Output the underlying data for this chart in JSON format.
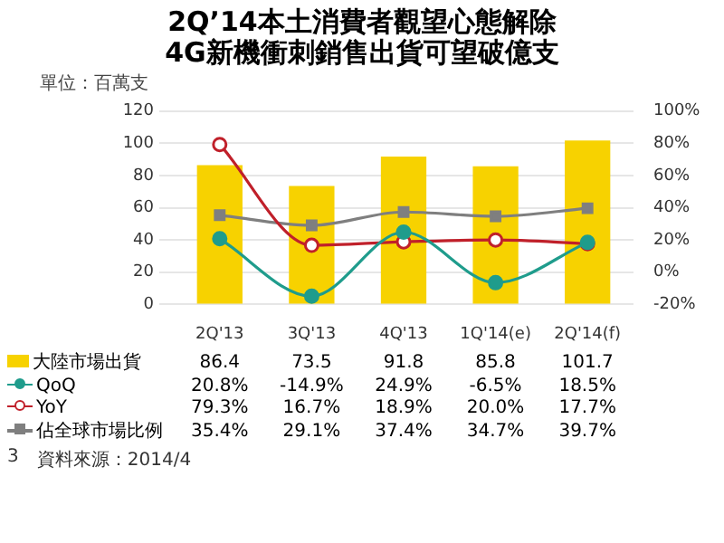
{
  "chart_data": {
    "type": "bar",
    "title": "2Q’14本土消費者觀望心態解除\n4G新機衝刺銷售出貨可望破億支",
    "ylabel": "單位：百萬支",
    "categories": [
      "2Q'13",
      "3Q'13",
      "4Q'13",
      "1Q'14(e)",
      "2Q'14(f)"
    ],
    "series": [
      {
        "name": "大陸市場出貨",
        "color": "#f7d200",
        "values": [
          86.4,
          73.5,
          91.8,
          85.8,
          101.7
        ],
        "value_labels": [
          "86.4",
          "73.5",
          "91.8",
          "85.8",
          "101.7"
        ]
      },
      {
        "name": "QoQ",
        "type": "line",
        "axis": "y2",
        "marker": "circle",
        "color": "#1f9c8c",
        "values": [
          20.8,
          -14.9,
          24.9,
          -6.5,
          18.5
        ],
        "value_labels": [
          "20.8%",
          "-14.9%",
          "24.9%",
          "-6.5%",
          "18.5%"
        ]
      },
      {
        "name": "YoY",
        "type": "line",
        "axis": "y2",
        "marker": "circle",
        "color": "#c0202a",
        "values": [
          79.3,
          16.7,
          18.9,
          20.0,
          17.7
        ],
        "value_labels": [
          "79.3%",
          "16.7%",
          "18.9%",
          "20.0%",
          "17.7%"
        ]
      },
      {
        "name": "佔全球市場比例",
        "type": "line",
        "axis": "y2",
        "marker": "square",
        "color": "#7f7f7f",
        "values": [
          35.4,
          29.1,
          37.4,
          34.7,
          39.7
        ],
        "value_labels": [
          "35.4%",
          "29.1%",
          "37.4%",
          "34.7%",
          "39.7%"
        ]
      }
    ],
    "ylim": [
      0,
      120
    ],
    "yticks": [
      0,
      20,
      40,
      60,
      80,
      100,
      120
    ],
    "y2lim": [
      -20,
      100
    ],
    "y2ticks": [
      {
        "value": -20,
        "label": "-20%"
      },
      {
        "value": 0,
        "label": "0%"
      },
      {
        "value": 20,
        "label": "20%"
      },
      {
        "value": 40,
        "label": "40%"
      },
      {
        "value": 60,
        "label": "60%"
      },
      {
        "value": 80,
        "label": "80%"
      },
      {
        "value": 100,
        "label": "100%"
      }
    ],
    "grid": "y",
    "legend": "bottom left",
    "annotations": [
      "3",
      "資料來源：2014/4"
    ]
  }
}
